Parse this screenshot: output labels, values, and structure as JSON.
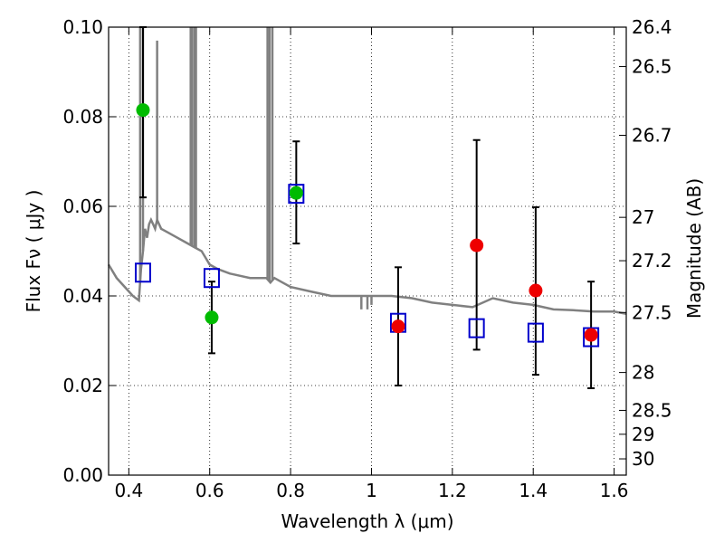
{
  "chart_data": {
    "type": "scatter",
    "xlabel": "Wavelength  λ (μm)",
    "ylabel": "Flux  Fν  ( μJy )",
    "y2label": "Magnitude (AB)",
    "xlim": [
      0.35,
      1.63
    ],
    "ylim": [
      0.0,
      0.1
    ],
    "grid": true,
    "x_ticks": [
      0.4,
      0.6,
      0.8,
      1.0,
      1.2,
      1.4,
      1.6
    ],
    "x_tick_labels": [
      "0.4",
      "0.6",
      "0.8",
      "1",
      "1.2",
      "1.4",
      "1.6"
    ],
    "y_ticks": [
      0.0,
      0.02,
      0.04,
      0.06,
      0.08,
      0.1
    ],
    "y_tick_labels": [
      "0.00",
      "0.02",
      "0.04",
      "0.06",
      "0.08",
      "0.10"
    ],
    "y2_tick_labels": [
      "26.4",
      "26.5",
      "26.7",
      "27",
      "27.2",
      "27.5",
      "28",
      "28.5",
      "29",
      "30"
    ],
    "series": [
      {
        "marker": "circle",
        "color": "#00bb00",
        "points": [
          {
            "x": 0.435,
            "y": 0.0815,
            "yerr_low": 0.062,
            "yerr_high": 0.1
          },
          {
            "x": 0.605,
            "y": 0.0352,
            "yerr_low": 0.0272,
            "yerr_high": 0.0432
          },
          {
            "x": 0.814,
            "y": 0.063,
            "yerr_low": 0.0517,
            "yerr_high": 0.0745
          }
        ]
      },
      {
        "marker": "circle",
        "color": "#ee0000",
        "points": [
          {
            "x": 1.066,
            "y": 0.0332,
            "yerr_low": 0.02,
            "yerr_high": 0.0464
          },
          {
            "x": 1.26,
            "y": 0.0513,
            "yerr_low": 0.028,
            "yerr_high": 0.0748
          },
          {
            "x": 1.406,
            "y": 0.0412,
            "yerr_low": 0.0224,
            "yerr_high": 0.0598
          },
          {
            "x": 1.543,
            "y": 0.0313,
            "yerr_low": 0.0194,
            "yerr_high": 0.0432
          }
        ]
      },
      {
        "marker": "open-square",
        "color": "#0000cc",
        "points": [
          {
            "x": 0.435,
            "y": 0.0452
          },
          {
            "x": 0.605,
            "y": 0.044
          },
          {
            "x": 0.814,
            "y": 0.0628
          },
          {
            "x": 1.066,
            "y": 0.034
          },
          {
            "x": 1.26,
            "y": 0.0328
          },
          {
            "x": 1.406,
            "y": 0.0318
          },
          {
            "x": 1.543,
            "y": 0.0308
          }
        ]
      },
      {
        "type": "line",
        "color": "#808080",
        "x": [
          0.35,
          0.37,
          0.39,
          0.41,
          0.425,
          0.43,
          0.435,
          0.44,
          0.445,
          0.45,
          0.455,
          0.46,
          0.465,
          0.47,
          0.48,
          0.5,
          0.52,
          0.54,
          0.56,
          0.58,
          0.6,
          0.62,
          0.65,
          0.7,
          0.74,
          0.75,
          0.76,
          0.78,
          0.8,
          0.85,
          0.9,
          0.95,
          0.97,
          1.0,
          1.05,
          1.1,
          1.15,
          1.2,
          1.25,
          1.3,
          1.35,
          1.4,
          1.45,
          1.5,
          1.55,
          1.6,
          1.63
        ],
        "y": [
          0.047,
          0.044,
          0.042,
          0.04,
          0.039,
          0.046,
          0.05,
          0.055,
          0.053,
          0.056,
          0.057,
          0.056,
          0.055,
          0.057,
          0.055,
          0.054,
          0.053,
          0.052,
          0.051,
          0.05,
          0.047,
          0.046,
          0.045,
          0.044,
          0.044,
          0.043,
          0.044,
          0.043,
          0.042,
          0.041,
          0.04,
          0.04,
          0.04,
          0.04,
          0.04,
          0.0395,
          0.0385,
          0.038,
          0.0375,
          0.0395,
          0.0385,
          0.038,
          0.037,
          0.0368,
          0.0365,
          0.0365,
          0.036
        ],
        "spikes": [
          {
            "x": 0.428,
            "y_top": 0.1
          },
          {
            "x": 0.435,
            "y_top": 0.1
          },
          {
            "x": 0.47,
            "y_top": 0.097
          },
          {
            "x": 0.553,
            "y_top": 0.1
          },
          {
            "x": 0.557,
            "y_top": 0.1
          },
          {
            "x": 0.563,
            "y_top": 0.1
          },
          {
            "x": 0.566,
            "y_top": 0.1
          },
          {
            "x": 0.743,
            "y_top": 0.1
          },
          {
            "x": 0.748,
            "y_top": 0.1
          },
          {
            "x": 0.755,
            "y_top": 0.1
          }
        ],
        "dips": [
          {
            "x": 0.975,
            "y_bottom": 0.037
          },
          {
            "x": 0.99,
            "y_bottom": 0.037
          },
          {
            "x": 1.0,
            "y_bottom": 0.038
          }
        ]
      }
    ]
  }
}
